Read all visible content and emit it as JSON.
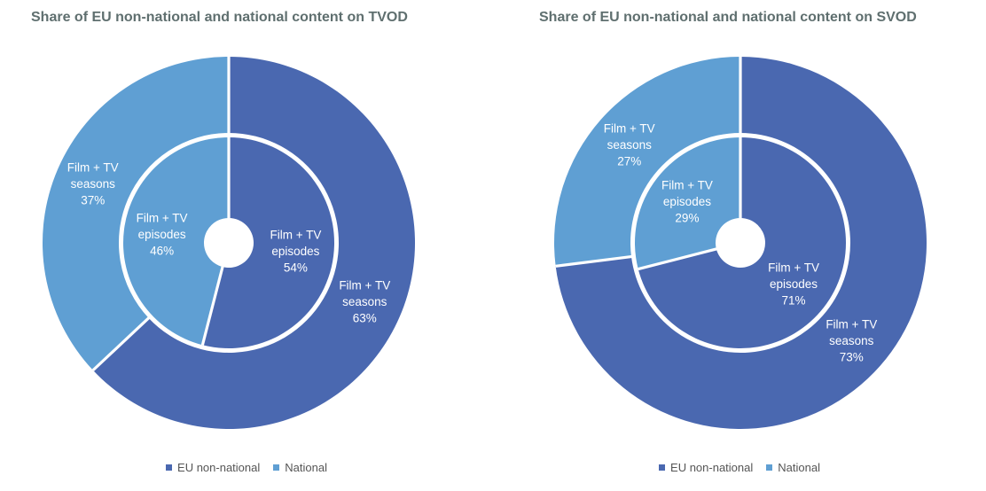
{
  "page": {
    "background": "#FFFFFF"
  },
  "colors": {
    "eu_non_national": "#4A68B0",
    "national": "#5F9FD3",
    "title_text": "#5F6F6F",
    "legend_text": "#555555",
    "slice_label_text": "#FFFFFF",
    "divider": "#FFFFFF"
  },
  "chart_data": [
    {
      "type": "pie",
      "subtype": "nested-donut",
      "title": "Share of EU non-national and national content on TVOD",
      "legend_position": "bottom",
      "legend": [
        {
          "label": "EU non-national",
          "color_key": "eu_non_national"
        },
        {
          "label": "National",
          "color_key": "national"
        }
      ],
      "rings": [
        {
          "name": "Film + TV seasons",
          "position": "outer",
          "unit": "%",
          "slices": [
            {
              "series": "EU non-national",
              "value": 63,
              "color_key": "eu_non_national",
              "label_lines": [
                "Film + TV",
                "seasons",
                "63%"
              ]
            },
            {
              "series": "National",
              "value": 37,
              "color_key": "national",
              "label_lines": [
                "Film + TV",
                "seasons",
                "37%"
              ]
            }
          ]
        },
        {
          "name": "Film + TV episodes",
          "position": "inner",
          "unit": "%",
          "slices": [
            {
              "series": "EU non-national",
              "value": 54,
              "color_key": "eu_non_national",
              "label_lines": [
                "Film + TV",
                "episodes",
                "54%"
              ]
            },
            {
              "series": "National",
              "value": 46,
              "color_key": "national",
              "label_lines": [
                "Film + TV",
                "episodes",
                "46%"
              ]
            }
          ]
        }
      ]
    },
    {
      "type": "pie",
      "subtype": "nested-donut",
      "title": "Share of EU non-national and national content on SVOD",
      "legend_position": "bottom",
      "legend": [
        {
          "label": "EU non-national",
          "color_key": "eu_non_national"
        },
        {
          "label": "National",
          "color_key": "national"
        }
      ],
      "rings": [
        {
          "name": "Film + TV seasons",
          "position": "outer",
          "unit": "%",
          "slices": [
            {
              "series": "EU non-national",
              "value": 73,
              "color_key": "eu_non_national",
              "label_lines": [
                "Film + TV",
                "seasons",
                "73%"
              ]
            },
            {
              "series": "National",
              "value": 27,
              "color_key": "national",
              "label_lines": [
                "Film + TV",
                "seasons",
                "27%"
              ]
            }
          ]
        },
        {
          "name": "Film + TV episodes",
          "position": "inner",
          "unit": "%",
          "slices": [
            {
              "series": "EU non-national",
              "value": 71,
              "color_key": "eu_non_national",
              "label_lines": [
                "Film + TV",
                "episodes",
                "71%"
              ]
            },
            {
              "series": "National",
              "value": 29,
              "color_key": "national",
              "label_lines": [
                "Film + TV",
                "episodes",
                "29%"
              ]
            }
          ]
        }
      ]
    }
  ]
}
